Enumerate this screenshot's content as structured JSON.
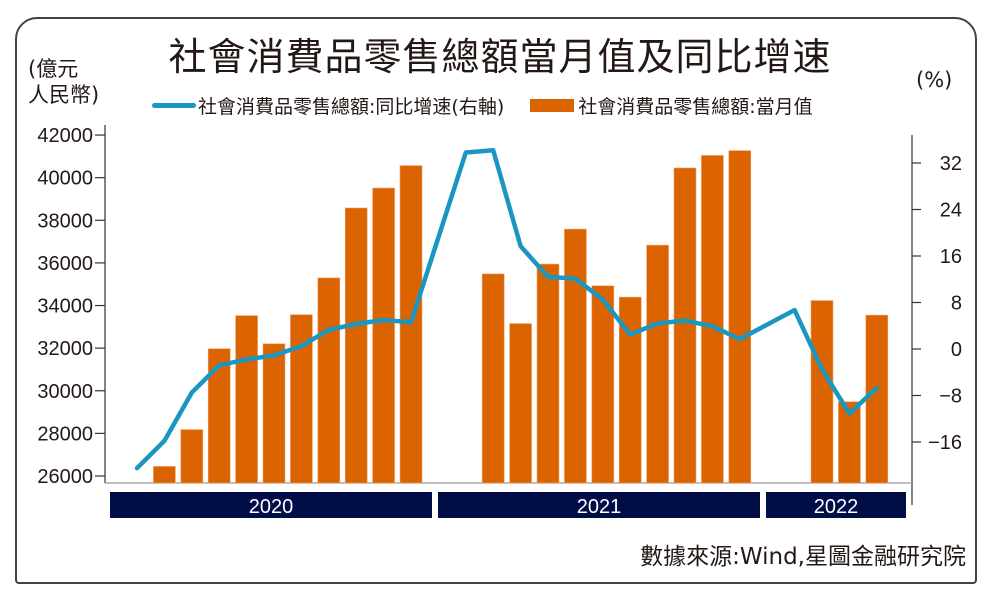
{
  "chart_data": {
    "type": "bar+line",
    "title": "社會消費品零售總額當月值及同比增速",
    "left_axis_unit": "(億元\n人民幣)",
    "right_axis_unit": "(%)",
    "legend": [
      {
        "name": "社會消費品零售總額:同比增速(右軸)",
        "type": "line",
        "color": "#1a97c0"
      },
      {
        "name": "社會消費品零售總額:當月值",
        "type": "bar",
        "color": "#dc6400"
      }
    ],
    "legend_placement": "top",
    "source": "數據來源:Wind,星圖金融研究院",
    "left_ylim": [
      25700,
      42400
    ],
    "left_ticks": [
      "42000",
      "40000",
      "38000",
      "36000",
      "34000",
      "32000",
      "30000",
      "28000",
      "26000"
    ],
    "right_ylim": [
      -23,
      36
    ],
    "right_ticks": [
      "32",
      "24",
      "16",
      "8",
      "0",
      "−8",
      "−16"
    ],
    "years": [
      {
        "label": "2020",
        "values": [
          null,
          26450,
          28178,
          31973,
          33526,
          32203,
          33571,
          35295,
          38576,
          39514,
          40566
        ],
        "growth": [
          -20.5,
          -15.8,
          -7.5,
          -2.8,
          -1.8,
          -1.1,
          0.5,
          3.3,
          4.3,
          5.0,
          4.6
        ]
      },
      {
        "label": "2021",
        "values": [
          null,
          35484,
          33153,
          35945,
          37586,
          34925,
          34395,
          36833,
          40454,
          41043,
          41269
        ],
        "growth": [
          33.8,
          34.2,
          17.7,
          12.4,
          12.1,
          8.5,
          2.5,
          4.4,
          4.9,
          3.9,
          1.7
        ]
      },
      {
        "label": "2022",
        "values": [
          null,
          34233,
          29483,
          33547
        ],
        "growth": [
          6.7,
          -3.5,
          -11.1,
          -6.7
        ]
      }
    ],
    "colors": {
      "bar": "#dc6400",
      "line": "#1a97c0",
      "year_band": "#000d47"
    }
  }
}
